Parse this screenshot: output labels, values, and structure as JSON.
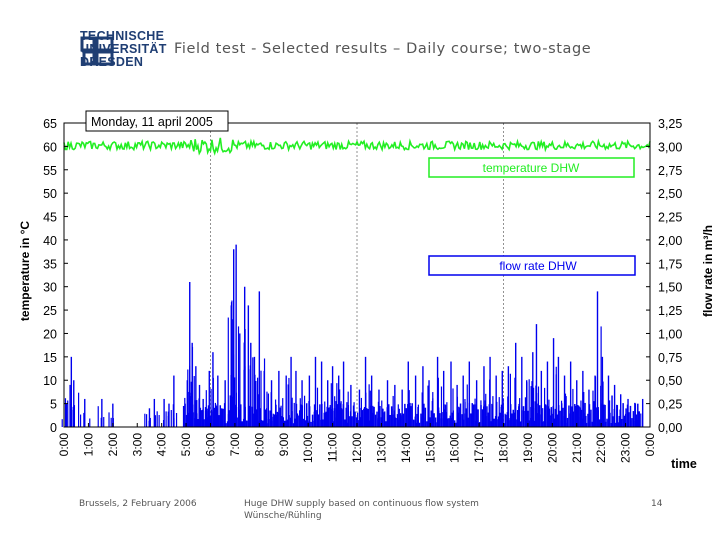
{
  "header": {
    "logo_lines": [
      "TECHNISCHE",
      "UNIVERSITÄT",
      "DRESDEN"
    ],
    "title": "Field test - Selected results – Daily course; two-stage"
  },
  "footer": {
    "left": "Brussels, 2 February 2006",
    "center_line1": "Huge DHW supply based on continuous flow system",
    "center_line2": "Wünsche/Rühling",
    "page": "14"
  },
  "colors": {
    "temperature": "#22ee22",
    "flow": "#0000ee",
    "frame": "#000000"
  },
  "chart_data": {
    "type": "area",
    "date_label": "Monday, 11 april 2005",
    "ylabel_left": "temperature in °C",
    "ylabel_right": "flow rate in m³/h",
    "xlabel": "time",
    "left_ylim": [
      0,
      65
    ],
    "left_ticks": [
      "0",
      "5",
      "10",
      "15",
      "20",
      "25",
      "30",
      "35",
      "40",
      "45",
      "50",
      "55",
      "60",
      "65"
    ],
    "right_ylim": [
      0,
      3.25
    ],
    "right_ticks": [
      "0,00",
      "0,25",
      "0,50",
      "0,75",
      "1,00",
      "1,25",
      "1,50",
      "1,75",
      "2,00",
      "2,25",
      "2,50",
      "2,75",
      "3,00",
      "3,25"
    ],
    "x_ticks": [
      "0:00",
      "1:00",
      "2:00",
      "3:00",
      "4:00",
      "5:00",
      "6:00",
      "7:00",
      "8:00",
      "9:00",
      "10:00",
      "11:00",
      "12:00",
      "13:00",
      "14:00",
      "15:00",
      "16:00",
      "17:00",
      "18:00",
      "19:00",
      "20:00",
      "21:00",
      "22:00",
      "23:00",
      "0:00"
    ],
    "gridlines_hours": [
      6,
      12,
      18
    ],
    "series": [
      {
        "name": "temperature DHW",
        "axis": "left",
        "color": "#22ee22",
        "mean": 60.2,
        "noise": 0.9,
        "stronger_noise_hours": [
          5,
          7
        ]
      },
      {
        "name": "flow rate DHW",
        "axis": "right",
        "color": "#0000ee",
        "peaks": [
          [
            0.1,
            0.25
          ],
          [
            0.25,
            0.45
          ],
          [
            0.3,
            0.75
          ],
          [
            0.4,
            0.5
          ],
          [
            0.85,
            0.3
          ],
          [
            1.55,
            0.3
          ],
          [
            2.0,
            0.25
          ],
          [
            3.5,
            0.2
          ],
          [
            3.7,
            0.3
          ],
          [
            4.1,
            0.3
          ],
          [
            4.3,
            0.25
          ],
          [
            4.5,
            0.55
          ],
          [
            5.05,
            0.5
          ],
          [
            5.15,
            1.55
          ],
          [
            5.25,
            0.9
          ],
          [
            5.4,
            0.65
          ],
          [
            5.55,
            0.45
          ],
          [
            5.7,
            0.3
          ],
          [
            5.95,
            0.6
          ],
          [
            6.1,
            0.8
          ],
          [
            6.3,
            0.55
          ],
          [
            6.6,
            0.5
          ],
          [
            6.85,
            1.3
          ],
          [
            6.95,
            1.9
          ],
          [
            7.05,
            1.95
          ],
          [
            7.2,
            1.0
          ],
          [
            7.4,
            1.5
          ],
          [
            7.55,
            1.3
          ],
          [
            7.65,
            0.9
          ],
          [
            7.8,
            0.75
          ],
          [
            8.0,
            1.45
          ],
          [
            8.2,
            0.6
          ],
          [
            8.5,
            0.5
          ],
          [
            8.8,
            0.6
          ],
          [
            9.1,
            0.55
          ],
          [
            9.3,
            0.75
          ],
          [
            9.5,
            0.6
          ],
          [
            9.75,
            0.5
          ],
          [
            10.05,
            0.55
          ],
          [
            10.3,
            0.75
          ],
          [
            10.55,
            0.7
          ],
          [
            10.8,
            0.5
          ],
          [
            11.0,
            0.65
          ],
          [
            11.25,
            0.55
          ],
          [
            11.45,
            0.7
          ],
          [
            11.75,
            0.45
          ],
          [
            12.1,
            0.4
          ],
          [
            12.35,
            0.75
          ],
          [
            12.6,
            0.55
          ],
          [
            12.9,
            0.4
          ],
          [
            13.25,
            0.5
          ],
          [
            13.55,
            0.45
          ],
          [
            13.85,
            0.4
          ],
          [
            14.1,
            0.7
          ],
          [
            14.4,
            0.55
          ],
          [
            14.7,
            0.65
          ],
          [
            14.95,
            0.5
          ],
          [
            15.3,
            0.75
          ],
          [
            15.55,
            0.6
          ],
          [
            15.85,
            0.7
          ],
          [
            16.1,
            0.45
          ],
          [
            16.35,
            0.55
          ],
          [
            16.6,
            0.7
          ],
          [
            16.9,
            0.5
          ],
          [
            17.2,
            0.65
          ],
          [
            17.45,
            0.75
          ],
          [
            17.7,
            0.55
          ],
          [
            17.95,
            0.6
          ],
          [
            18.2,
            0.65
          ],
          [
            18.5,
            0.9
          ],
          [
            18.75,
            0.75
          ],
          [
            18.95,
            0.5
          ],
          [
            19.2,
            0.8
          ],
          [
            19.35,
            1.1
          ],
          [
            19.55,
            0.6
          ],
          [
            19.8,
            0.7
          ],
          [
            20.05,
            0.95
          ],
          [
            20.25,
            0.75
          ],
          [
            20.5,
            0.55
          ],
          [
            20.75,
            0.7
          ],
          [
            21.0,
            0.5
          ],
          [
            21.25,
            0.6
          ],
          [
            21.5,
            0.4
          ],
          [
            21.75,
            0.55
          ],
          [
            21.85,
            1.45
          ],
          [
            22.05,
            0.75
          ],
          [
            22.3,
            0.55
          ],
          [
            22.55,
            0.45
          ],
          [
            22.8,
            0.35
          ],
          [
            23.1,
            0.3
          ],
          [
            23.4,
            0.25
          ],
          [
            23.7,
            0.3
          ]
        ]
      }
    ]
  }
}
